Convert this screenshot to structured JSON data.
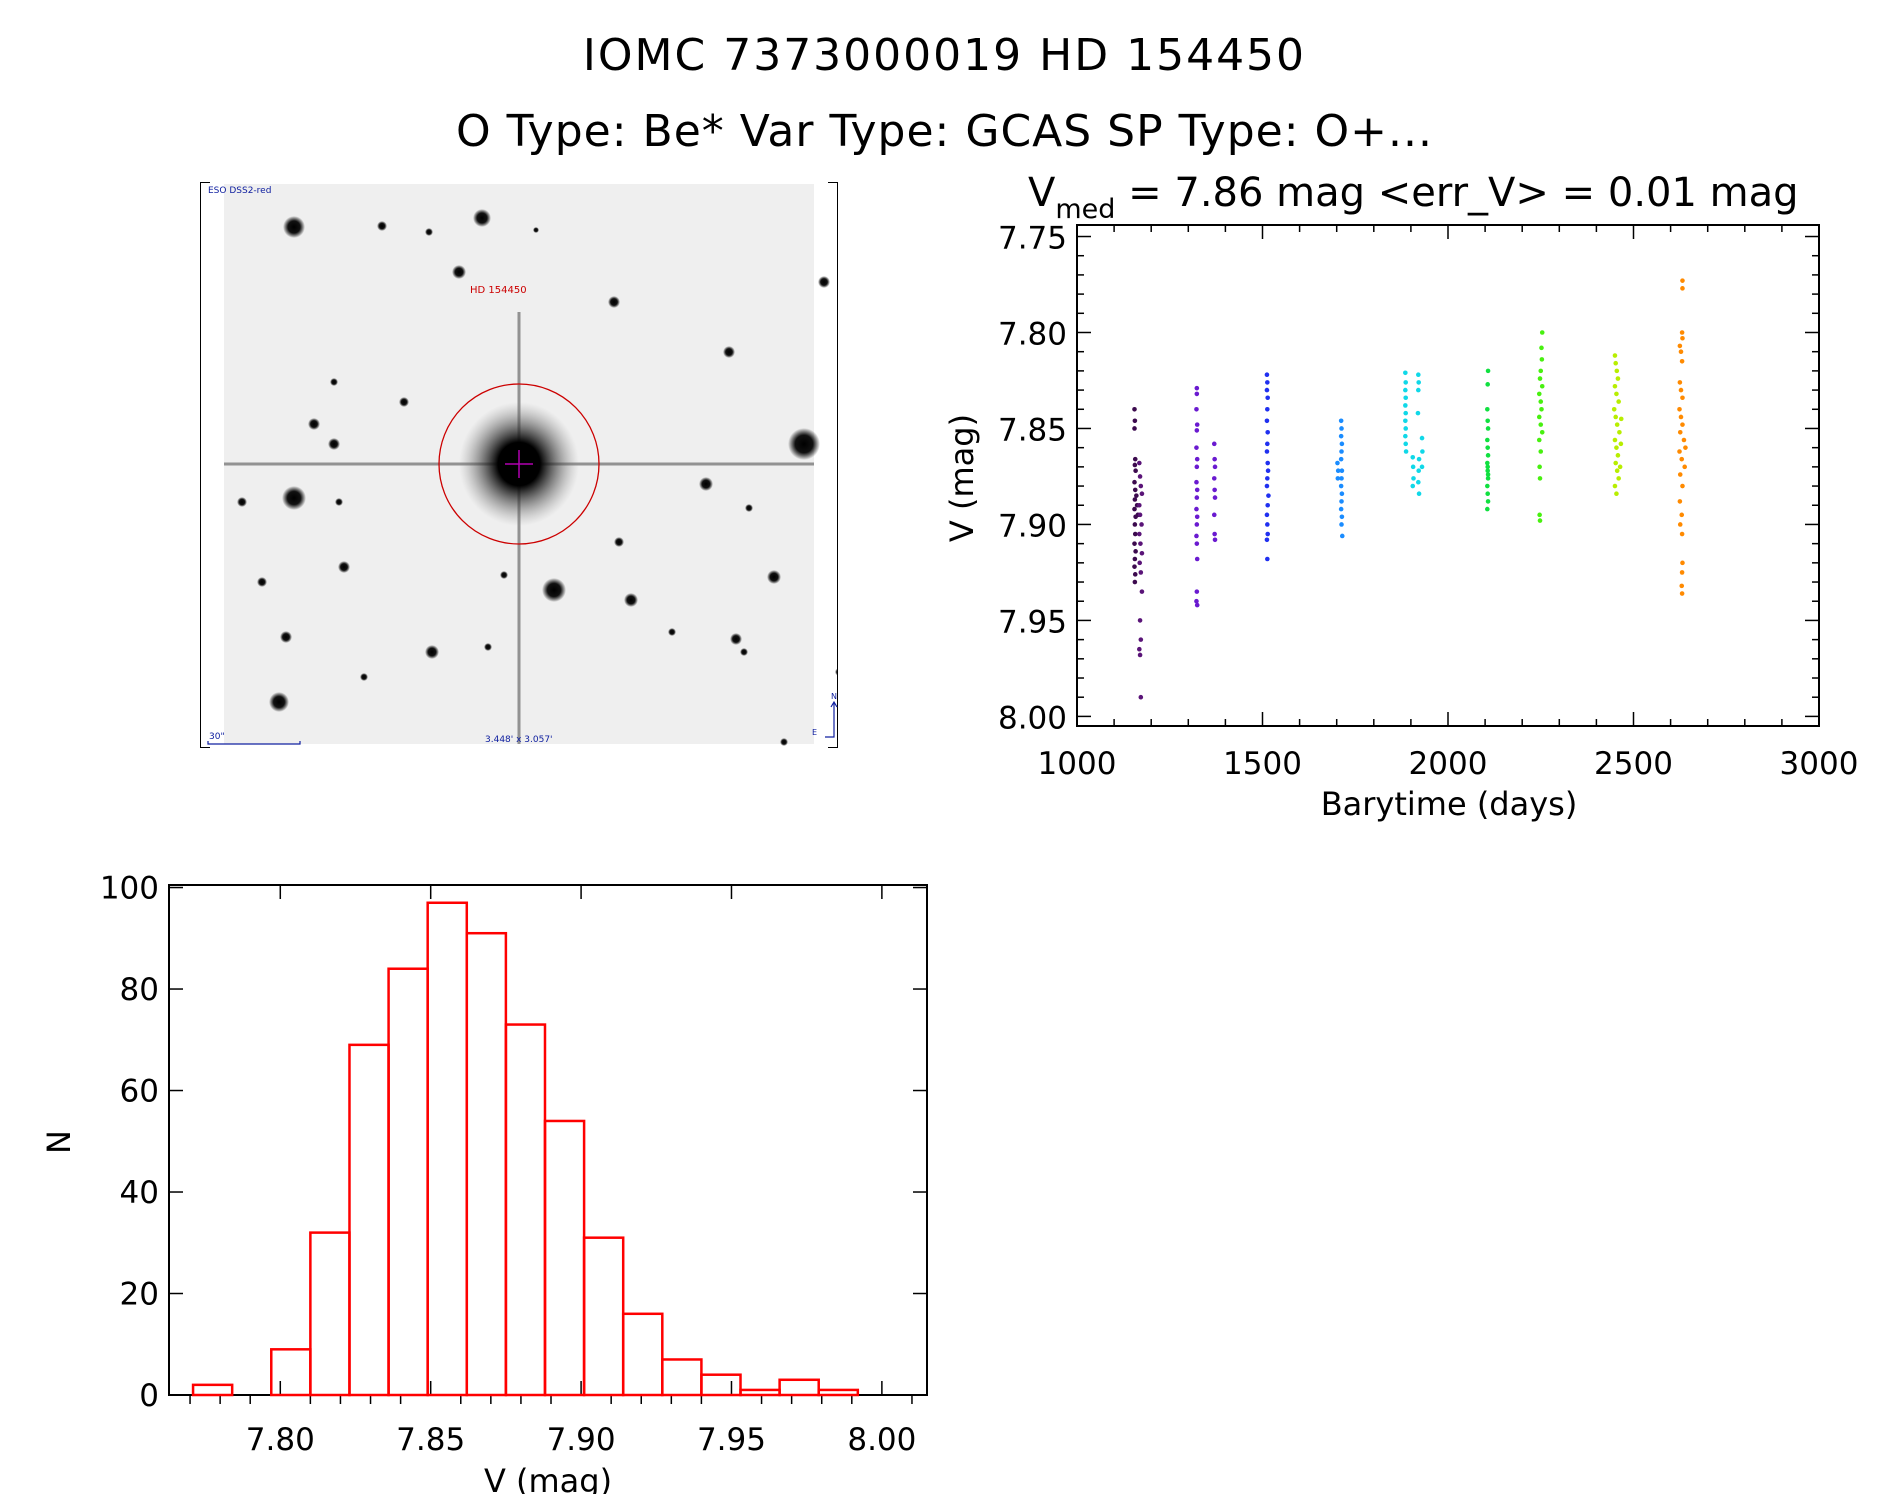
{
  "header": {
    "title": "IOMC 7373000019    HD 154450",
    "subtitle": "O Type: Be*   Var Type: GCAS   SP Type: O+..."
  },
  "image_panel": {
    "survey_label": "ESO DSS2-red",
    "target_label": "HD 154450",
    "scale_label": "30\"",
    "field_size_label": "3.448' x 3.057'",
    "north_label": "N",
    "east_label": "E"
  },
  "chart_data": [
    {
      "type": "scatter",
      "title_main": "V",
      "title_sub": "med",
      "title_rest": " = 7.86 mag <err_V> = 0.01 mag",
      "xlabel": "Barytime (days)",
      "ylabel": "V (mag)",
      "xlim": [
        1000,
        3000
      ],
      "ylim": [
        8.005,
        7.744
      ],
      "xticks": [
        1000,
        1500,
        2000,
        2500,
        3000
      ],
      "xtick_labels": [
        "1000",
        "1500",
        "2000",
        "2500",
        "3000"
      ],
      "yticks": [
        7.75,
        7.8,
        7.85,
        7.9,
        7.95,
        8.0
      ],
      "ytick_labels": [
        "7.75",
        "7.80",
        "7.85",
        "7.90",
        "7.95",
        "8.00"
      ],
      "grid": false,
      "series": [
        {
          "name": "season1",
          "color": "#3c0a4e",
          "points": [
            [
              1155,
              7.84
            ],
            [
              1156,
              7.846
            ],
            [
              1155,
              7.85
            ],
            [
              1157,
              7.866
            ],
            [
              1156,
              7.869
            ],
            [
              1158,
              7.872
            ],
            [
              1155,
              7.878
            ],
            [
              1157,
              7.882
            ],
            [
              1156,
              7.887
            ],
            [
              1155,
              7.892
            ],
            [
              1158,
              7.896
            ],
            [
              1156,
              7.9
            ],
            [
              1157,
              7.905
            ],
            [
              1155,
              7.91
            ],
            [
              1158,
              7.914
            ],
            [
              1156,
              7.918
            ],
            [
              1155,
              7.922
            ],
            [
              1157,
              7.926
            ],
            [
              1156,
              7.93
            ],
            [
              1160,
              7.885
            ],
            [
              1162,
              7.89
            ],
            [
              1164,
              7.895
            ]
          ]
        },
        {
          "name": "season1b",
          "color": "#5a1478",
          "points": [
            [
              1168,
              7.868
            ],
            [
              1170,
              7.875
            ],
            [
              1172,
              7.88
            ],
            [
              1175,
              7.884
            ],
            [
              1168,
              7.89
            ],
            [
              1170,
              7.895
            ],
            [
              1174,
              7.9
            ],
            [
              1168,
              7.905
            ],
            [
              1171,
              7.91
            ],
            [
              1175,
              7.915
            ],
            [
              1169,
              7.92
            ],
            [
              1172,
              7.925
            ],
            [
              1175,
              7.935
            ],
            [
              1170,
              7.95
            ],
            [
              1172,
              7.96
            ],
            [
              1168,
              7.965
            ],
            [
              1170,
              7.968
            ],
            [
              1172,
              7.99
            ]
          ]
        },
        {
          "name": "season2",
          "color": "#6a1ad0",
          "points": [
            [
              1323,
              7.829
            ],
            [
              1323,
              7.832
            ],
            [
              1322,
              7.84
            ],
            [
              1324,
              7.848
            ],
            [
              1323,
              7.851
            ],
            [
              1322,
              7.86
            ],
            [
              1324,
              7.866
            ],
            [
              1323,
              7.87
            ],
            [
              1322,
              7.878
            ],
            [
              1324,
              7.882
            ],
            [
              1323,
              7.886
            ],
            [
              1322,
              7.892
            ],
            [
              1324,
              7.896
            ],
            [
              1323,
              7.9
            ],
            [
              1322,
              7.906
            ],
            [
              1323,
              7.91
            ],
            [
              1324,
              7.918
            ],
            [
              1323,
              7.935
            ],
            [
              1322,
              7.94
            ],
            [
              1324,
              7.942
            ],
            [
              1370,
              7.858
            ],
            [
              1371,
              7.866
            ],
            [
              1372,
              7.87
            ],
            [
              1370,
              7.876
            ],
            [
              1371,
              7.882
            ],
            [
              1372,
              7.886
            ],
            [
              1370,
              7.895
            ],
            [
              1371,
              7.905
            ],
            [
              1372,
              7.908
            ]
          ]
        },
        {
          "name": "season3",
          "color": "#2030f0",
          "points": [
            [
              1512,
              7.822
            ],
            [
              1513,
              7.826
            ],
            [
              1512,
              7.83
            ],
            [
              1514,
              7.834
            ],
            [
              1513,
              7.84
            ],
            [
              1512,
              7.846
            ],
            [
              1514,
              7.852
            ],
            [
              1513,
              7.858
            ],
            [
              1512,
              7.862
            ],
            [
              1514,
              7.868
            ],
            [
              1515,
              7.872
            ],
            [
              1513,
              7.876
            ],
            [
              1512,
              7.88
            ],
            [
              1516,
              7.885
            ],
            [
              1514,
              7.89
            ],
            [
              1512,
              7.895
            ],
            [
              1513,
              7.9
            ],
            [
              1514,
              7.905
            ],
            [
              1512,
              7.908
            ],
            [
              1513,
              7.918
            ]
          ]
        },
        {
          "name": "season4",
          "color": "#1a8cff",
          "points": [
            [
              1702,
              7.868
            ],
            [
              1704,
              7.872
            ],
            [
              1703,
              7.876
            ],
            [
              1712,
              7.846
            ],
            [
              1713,
              7.85
            ],
            [
              1712,
              7.854
            ],
            [
              1714,
              7.858
            ],
            [
              1713,
              7.862
            ],
            [
              1712,
              7.866
            ],
            [
              1714,
              7.872
            ],
            [
              1713,
              7.876
            ],
            [
              1712,
              7.88
            ],
            [
              1714,
              7.884
            ],
            [
              1713,
              7.888
            ],
            [
              1712,
              7.892
            ],
            [
              1714,
              7.896
            ],
            [
              1713,
              7.9
            ],
            [
              1715,
              7.906
            ]
          ]
        },
        {
          "name": "season5",
          "color": "#10d8e8",
          "points": [
            [
              1885,
              7.821
            ],
            [
              1886,
              7.826
            ],
            [
              1885,
              7.83
            ],
            [
              1886,
              7.834
            ],
            [
              1885,
              7.838
            ],
            [
              1886,
              7.842
            ],
            [
              1885,
              7.846
            ],
            [
              1886,
              7.85
            ],
            [
              1885,
              7.854
            ],
            [
              1886,
              7.858
            ],
            [
              1887,
              7.862
            ],
            [
              1905,
              7.865
            ],
            [
              1906,
              7.87
            ],
            [
              1907,
              7.876
            ],
            [
              1905,
              7.88
            ],
            [
              1920,
              7.822
            ],
            [
              1921,
              7.826
            ],
            [
              1920,
              7.83
            ],
            [
              1919,
              7.842
            ],
            [
              1922,
              7.866
            ],
            [
              1921,
              7.872
            ],
            [
              1920,
              7.878
            ],
            [
              1922,
              7.884
            ],
            [
              1930,
              7.855
            ],
            [
              1931,
              7.862
            ],
            [
              1930,
              7.87
            ]
          ]
        },
        {
          "name": "season6",
          "color": "#10e040",
          "points": [
            [
              2108,
              7.82
            ],
            [
              2107,
              7.827
            ],
            [
              2106,
              7.84
            ],
            [
              2107,
              7.846
            ],
            [
              2108,
              7.85
            ],
            [
              2106,
              7.856
            ],
            [
              2107,
              7.86
            ],
            [
              2108,
              7.864
            ],
            [
              2106,
              7.868
            ],
            [
              2107,
              7.872
            ],
            [
              2108,
              7.876
            ],
            [
              2106,
              7.88
            ],
            [
              2107,
              7.884
            ],
            [
              2108,
              7.888
            ],
            [
              2106,
              7.892
            ],
            [
              2107,
              7.87
            ],
            [
              2108,
              7.874
            ]
          ]
        },
        {
          "name": "season7",
          "color": "#48f010",
          "points": [
            [
              2254,
              7.8
            ],
            [
              2252,
              7.808
            ],
            [
              2253,
              7.814
            ],
            [
              2250,
              7.82
            ],
            [
              2248,
              7.824
            ],
            [
              2254,
              7.828
            ],
            [
              2246,
              7.832
            ],
            [
              2250,
              7.836
            ],
            [
              2252,
              7.84
            ],
            [
              2246,
              7.844
            ],
            [
              2250,
              7.848
            ],
            [
              2254,
              7.852
            ],
            [
              2246,
              7.856
            ],
            [
              2250,
              7.862
            ],
            [
              2247,
              7.87
            ],
            [
              2248,
              7.876
            ],
            [
              2247,
              7.895
            ],
            [
              2248,
              7.898
            ]
          ]
        },
        {
          "name": "season8",
          "color": "#b8ee00",
          "points": [
            [
              2450,
              7.812
            ],
            [
              2452,
              7.816
            ],
            [
              2455,
              7.82
            ],
            [
              2458,
              7.824
            ],
            [
              2450,
              7.828
            ],
            [
              2454,
              7.832
            ],
            [
              2460,
              7.836
            ],
            [
              2448,
              7.84
            ],
            [
              2452,
              7.844
            ],
            [
              2456,
              7.848
            ],
            [
              2462,
              7.852
            ],
            [
              2450,
              7.856
            ],
            [
              2454,
              7.86
            ],
            [
              2458,
              7.864
            ],
            [
              2452,
              7.868
            ],
            [
              2456,
              7.872
            ],
            [
              2460,
              7.876
            ],
            [
              2450,
              7.88
            ],
            [
              2454,
              7.884
            ],
            [
              2464,
              7.87
            ],
            [
              2466,
              7.858
            ],
            [
              2467,
              7.845
            ]
          ]
        },
        {
          "name": "season9",
          "color": "#ff8a00",
          "points": [
            [
              2632,
              7.773
            ],
            [
              2632,
              7.777
            ],
            [
              2631,
              7.8
            ],
            [
              2632,
              7.803
            ],
            [
              2625,
              7.807
            ],
            [
              2628,
              7.81
            ],
            [
              2631,
              7.815
            ],
            [
              2625,
              7.826
            ],
            [
              2628,
              7.83
            ],
            [
              2632,
              7.834
            ],
            [
              2624,
              7.84
            ],
            [
              2628,
              7.844
            ],
            [
              2632,
              7.848
            ],
            [
              2626,
              7.852
            ],
            [
              2636,
              7.856
            ],
            [
              2640,
              7.86
            ],
            [
              2624,
              7.862
            ],
            [
              2630,
              7.866
            ],
            [
              2638,
              7.87
            ],
            [
              2626,
              7.874
            ],
            [
              2632,
              7.88
            ],
            [
              2625,
              7.888
            ],
            [
              2630,
              7.895
            ],
            [
              2626,
              7.9
            ],
            [
              2631,
              7.905
            ],
            [
              2632,
              7.92
            ],
            [
              2631,
              7.925
            ],
            [
              2630,
              7.932
            ],
            [
              2631,
              7.936
            ]
          ]
        }
      ]
    },
    {
      "type": "bar",
      "subtype": "histogram",
      "xlabel": "V (mag)",
      "ylabel": "N",
      "xlim": [
        7.763,
        8.015
      ],
      "ylim": [
        0,
        100.5
      ],
      "bin_width": 0.013,
      "bin_start": 7.771,
      "values": [
        2,
        0,
        9,
        32,
        69,
        84,
        97,
        91,
        73,
        54,
        31,
        16,
        7,
        4,
        1,
        3,
        1
      ],
      "bar_color": "#ff0000",
      "xticks": [
        7.8,
        7.85,
        7.9,
        7.95,
        8.0
      ],
      "xtick_labels": [
        "7.80",
        "7.85",
        "7.90",
        "7.95",
        "8.00"
      ],
      "yticks": [
        0,
        20,
        40,
        60,
        80,
        100
      ],
      "ytick_labels": [
        "0",
        "20",
        "40",
        "60",
        "80",
        "100"
      ]
    }
  ]
}
